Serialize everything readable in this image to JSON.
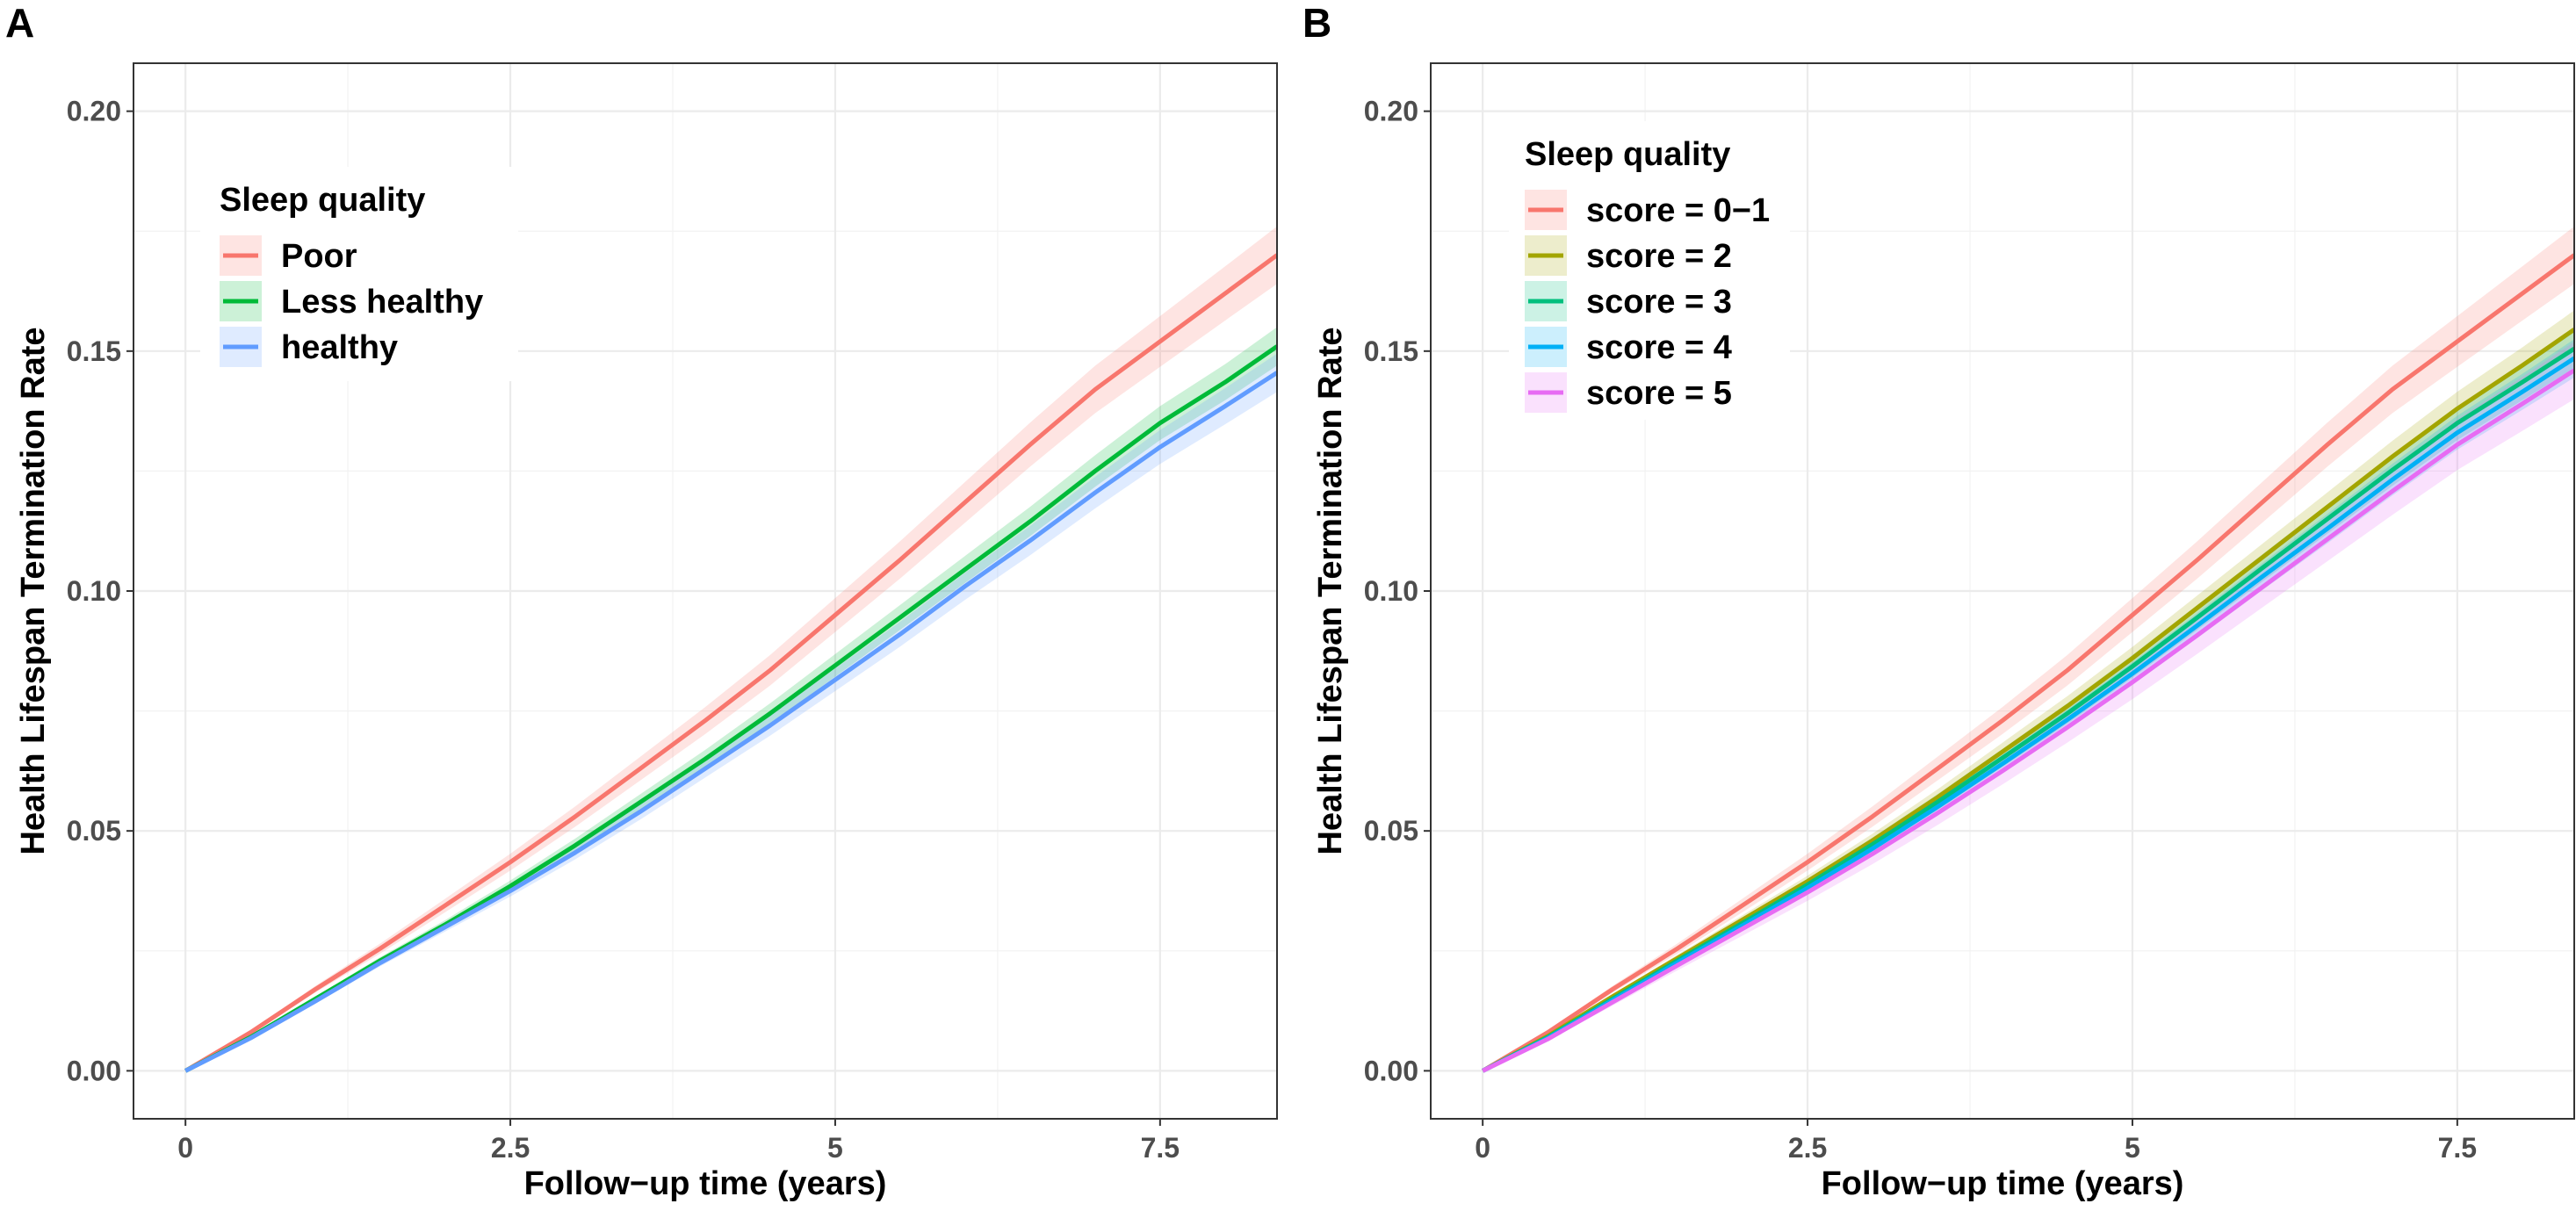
{
  "chart_data": [
    {
      "type": "line",
      "panel_label": "A",
      "xlabel": "Follow−up time (years)",
      "ylabel": "Health Lifespan Termination Rate",
      "xlim": [
        -0.4,
        8.4
      ],
      "ylim": [
        -0.01,
        0.21
      ],
      "x_ticks": [
        0,
        2.5,
        5,
        7.5
      ],
      "x_tick_labels": [
        "0",
        "2.5",
        "5",
        "7.5"
      ],
      "y_ticks": [
        0,
        0.05,
        0.1,
        0.15,
        0.2
      ],
      "y_tick_labels": [
        "0.00",
        "0.05",
        "0.10",
        "0.15",
        "0.20"
      ],
      "grid": true,
      "legend": {
        "title": "Sleep quality",
        "position": "top-left"
      },
      "x": [
        0,
        0.5,
        1,
        1.5,
        2,
        2.5,
        3,
        3.5,
        4,
        4.5,
        5,
        5.5,
        6,
        6.5,
        7,
        7.5,
        8,
        8.4
      ],
      "series": [
        {
          "name": "Poor",
          "color": "#F8766D",
          "values": [
            0,
            0.008,
            0.017,
            0.0255,
            0.0345,
            0.0435,
            0.053,
            0.063,
            0.073,
            0.0835,
            0.095,
            0.1065,
            0.1185,
            0.1305,
            0.142,
            0.152,
            0.162,
            0.17
          ],
          "band": 0.006
        },
        {
          "name": "Less healthy",
          "color": "#00BA38",
          "values": [
            0,
            0.007,
            0.015,
            0.023,
            0.0305,
            0.0385,
            0.047,
            0.056,
            0.065,
            0.0745,
            0.0845,
            0.0945,
            0.1045,
            0.1145,
            0.125,
            0.135,
            0.1435,
            0.151
          ],
          "band": 0.004
        },
        {
          "name": "healthy",
          "color": "#619CFF",
          "values": [
            0,
            0.0068,
            0.0145,
            0.0225,
            0.03,
            0.0375,
            0.0455,
            0.054,
            0.063,
            0.072,
            0.0815,
            0.091,
            0.101,
            0.1105,
            0.1205,
            0.13,
            0.1385,
            0.1455
          ],
          "band": 0.004
        }
      ]
    },
    {
      "type": "line",
      "panel_label": "B",
      "xlabel": "Follow−up time (years)",
      "ylabel": "Health Lifespan Termination Rate",
      "xlim": [
        -0.4,
        8.4
      ],
      "ylim": [
        -0.01,
        0.21
      ],
      "x_ticks": [
        0,
        2.5,
        5,
        7.5
      ],
      "x_tick_labels": [
        "0",
        "2.5",
        "5",
        "7.5"
      ],
      "y_ticks": [
        0,
        0.05,
        0.1,
        0.15,
        0.2
      ],
      "y_tick_labels": [
        "0.00",
        "0.05",
        "0.10",
        "0.15",
        "0.20"
      ],
      "grid": true,
      "legend": {
        "title": "Sleep quality",
        "position": "top-left"
      },
      "x": [
        0,
        0.5,
        1,
        1.5,
        2,
        2.5,
        3,
        3.5,
        4,
        4.5,
        5,
        5.5,
        6,
        6.5,
        7,
        7.5,
        8,
        8.4
      ],
      "series": [
        {
          "name": "score = 0−1",
          "color": "#F8766D",
          "values": [
            0,
            0.008,
            0.017,
            0.0255,
            0.0345,
            0.0435,
            0.053,
            0.063,
            0.073,
            0.0835,
            0.095,
            0.1065,
            0.1185,
            0.1305,
            0.142,
            0.152,
            0.162,
            0.17
          ],
          "band": 0.006
        },
        {
          "name": "score = 2",
          "color": "#A3A500",
          "values": [
            0,
            0.0072,
            0.0155,
            0.0235,
            0.0315,
            0.0395,
            0.048,
            0.057,
            0.0665,
            0.076,
            0.086,
            0.0965,
            0.107,
            0.1175,
            0.128,
            0.138,
            0.147,
            0.1545
          ],
          "band": 0.004
        },
        {
          "name": "score = 3",
          "color": "#00BF7D",
          "values": [
            0,
            0.007,
            0.015,
            0.023,
            0.0308,
            0.0388,
            0.0472,
            0.056,
            0.0652,
            0.0745,
            0.0843,
            0.0945,
            0.1048,
            0.115,
            0.1252,
            0.135,
            0.1435,
            0.1505
          ],
          "band": 0.004
        },
        {
          "name": "score = 4",
          "color": "#00B0F6",
          "values": [
            0,
            0.0068,
            0.0147,
            0.0226,
            0.0303,
            0.0381,
            0.0463,
            0.055,
            0.064,
            0.0732,
            0.0828,
            0.0928,
            0.103,
            0.113,
            0.1232,
            0.133,
            0.1415,
            0.1485
          ],
          "band": 0.004
        },
        {
          "name": "score = 5",
          "color": "#E76BF3",
          "values": [
            0,
            0.0066,
            0.0143,
            0.022,
            0.0296,
            0.0372,
            0.0452,
            0.0537,
            0.0625,
            0.0716,
            0.081,
            0.0908,
            0.1008,
            0.1108,
            0.1208,
            0.1305,
            0.139,
            0.146
          ],
          "band": 0.006
        }
      ]
    }
  ]
}
